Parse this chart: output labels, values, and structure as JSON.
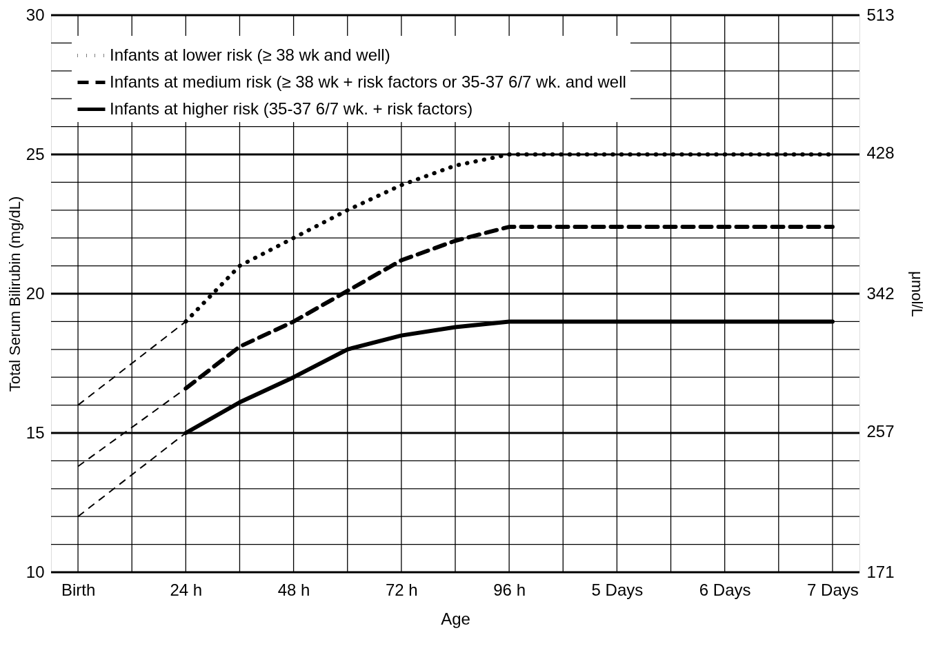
{
  "chart_data": {
    "type": "line",
    "xlabel": "Age",
    "ylabel": "Total Serum Bilirubin (mg/dL)",
    "y2label": "μmol/L",
    "categories": [
      "Birth",
      null,
      "24 h",
      null,
      "48 h",
      null,
      "72 h",
      null,
      "96 h",
      null,
      "5 Days",
      null,
      "6 Days",
      null,
      "7 Days"
    ],
    "ylim": [
      10,
      30
    ],
    "yticks": [
      10,
      {
        "value": 11,
        "label": null
      },
      {
        "value": 12,
        "label": null
      },
      {
        "value": 13,
        "label": null
      },
      {
        "value": 14,
        "label": null
      },
      15,
      {
        "value": 16,
        "label": null
      },
      {
        "value": 17,
        "label": null
      },
      {
        "value": 18,
        "label": null
      },
      {
        "value": 19,
        "label": null
      },
      20,
      {
        "value": 21,
        "label": null
      },
      {
        "value": 22,
        "label": null
      },
      {
        "value": 23,
        "label": null
      },
      {
        "value": 24,
        "label": null
      },
      25,
      {
        "value": 26,
        "label": null
      },
      {
        "value": 27,
        "label": null
      },
      {
        "value": 28,
        "label": null
      },
      {
        "value": 29,
        "label": null
      },
      30
    ],
    "y2lim": [
      171,
      513
    ],
    "y2ticks": [
      171,
      257,
      342,
      428,
      513
    ],
    "grid": true,
    "legend": "top left",
    "series": [
      {
        "name": "Infants at lower risk (≥ 38 wk and well)",
        "color": "#000000",
        "line_style": "dotted",
        "values": [
          null,
          null,
          19,
          21.0,
          22.0,
          23.0,
          23.9,
          24.6,
          25,
          25,
          25,
          25,
          25,
          25,
          25
        ]
      },
      {
        "name": "Infants at medium risk (≥ 38 wk + risk factors or 35-37 6/7 wk. and well",
        "color": "#000000",
        "line_style": "dashed",
        "values": [
          null,
          null,
          16.6,
          18.1,
          19.0,
          20.1,
          21.2,
          21.9,
          22.4,
          22.4,
          22.4,
          22.4,
          22.4,
          22.4,
          22.4
        ]
      },
      {
        "name": "Infants at higher risk (35-37 6/7 wk. + risk factors)",
        "color": "#000000",
        "line_style": "solid",
        "values": [
          null,
          null,
          15,
          16.1,
          17.0,
          18.0,
          18.5,
          18.8,
          19.0,
          19.0,
          19.0,
          19.0,
          19.0,
          19.0,
          19.0
        ]
      },
      {
        "color": "#000000",
        "line_style": "dashed",
        "values": [
          16,
          17.5,
          19,
          null,
          null,
          null,
          null,
          null,
          null,
          null,
          null,
          null,
          null,
          null,
          null
        ]
      },
      {
        "color": "#000000",
        "line_style": "dashed",
        "values": [
          13.8,
          15.2,
          16.6,
          null,
          null,
          null,
          null,
          null,
          null,
          null,
          null,
          null,
          null,
          null,
          null
        ]
      },
      {
        "color": "#000000",
        "line_style": "dashed",
        "values": [
          12,
          13.5,
          15,
          null,
          null,
          null,
          null,
          null,
          null,
          null,
          null,
          null,
          null,
          null,
          null
        ]
      }
    ]
  }
}
